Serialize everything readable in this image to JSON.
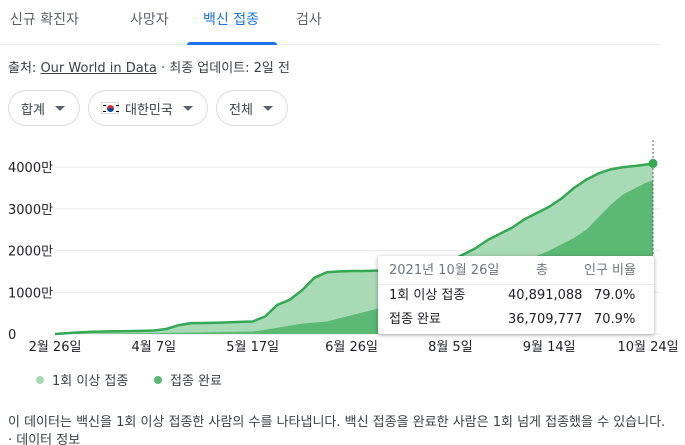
{
  "tabs": [
    {
      "label": "신규 확진자"
    },
    {
      "label": "사망자"
    },
    {
      "label": "백신 접종"
    },
    {
      "label": "검사"
    }
  ],
  "active_tab": "백신 접종",
  "source": {
    "prefix": "출처:",
    "link": "Our World in Data",
    "separator": "·",
    "updated": "최종 업데이트: 2일 전"
  },
  "filters": {
    "measure": "합계",
    "country": "대한민국",
    "scope": "전체"
  },
  "tooltip": {
    "date": "2021년 10월 26일",
    "col_total": "총",
    "col_ratio": "인구 비율",
    "rows": [
      {
        "label": "1회 이상 접종",
        "total": "40,891,088",
        "ratio": "79.0%"
      },
      {
        "label": "접종 완료",
        "total": "36,709,777",
        "ratio": "70.9%"
      }
    ]
  },
  "legend": [
    {
      "label": "1회 이상 접종",
      "color": "#a8dab5"
    },
    {
      "label": "접종 완료",
      "color": "#5bb974"
    }
  ],
  "description": {
    "text": "이 데이터는 백신을 1회 이상 접종한 사람의 수를 나타냅니다. 백신 접종을 완료한 사람은 1회 넘게 접종했을 수 있습니다.",
    "link": "· 데이터 정보"
  },
  "colors": {
    "accent": "#1a73e8",
    "line": "#34a853",
    "area_first": "#a8dab5",
    "area_full": "#5bb974"
  },
  "chart_data": {
    "type": "area",
    "unit": "만",
    "y_tick_labels": [
      "0",
      "1000만",
      "2000만",
      "3000만",
      "4000만"
    ],
    "ylim": [
      0,
      4000
    ],
    "x_tick_labels": [
      "2월 26일",
      "4월 7일",
      "5월 17일",
      "6월 26일",
      "8월 5일",
      "9월 14일",
      "10월 24일"
    ],
    "x_ticks_day": [
      0,
      40,
      80,
      120,
      160,
      200,
      240
    ],
    "x_start_label": "2월 26일",
    "x_end_day": 242,
    "grid": true,
    "legend_position": "bottom-left",
    "series": [
      {
        "name": "1회 이상 접종",
        "points": [
          [
            0,
            0
          ],
          [
            5,
            20
          ],
          [
            10,
            40
          ],
          [
            15,
            55
          ],
          [
            20,
            60
          ],
          [
            25,
            65
          ],
          [
            30,
            70
          ],
          [
            35,
            75
          ],
          [
            40,
            85
          ],
          [
            45,
            120
          ],
          [
            50,
            210
          ],
          [
            55,
            260
          ],
          [
            60,
            265
          ],
          [
            65,
            270
          ],
          [
            70,
            280
          ],
          [
            75,
            290
          ],
          [
            80,
            300
          ],
          [
            85,
            420
          ],
          [
            90,
            700
          ],
          [
            95,
            820
          ],
          [
            100,
            1050
          ],
          [
            105,
            1350
          ],
          [
            110,
            1480
          ],
          [
            115,
            1500
          ],
          [
            120,
            1510
          ],
          [
            125,
            1510
          ],
          [
            130,
            1520
          ],
          [
            135,
            1530
          ],
          [
            140,
            1540
          ],
          [
            145,
            1560
          ],
          [
            150,
            1600
          ],
          [
            155,
            1650
          ],
          [
            160,
            1750
          ],
          [
            165,
            1900
          ],
          [
            170,
            2050
          ],
          [
            175,
            2250
          ],
          [
            180,
            2400
          ],
          [
            185,
            2550
          ],
          [
            190,
            2750
          ],
          [
            195,
            2900
          ],
          [
            200,
            3050
          ],
          [
            205,
            3250
          ],
          [
            210,
            3500
          ],
          [
            215,
            3700
          ],
          [
            220,
            3850
          ],
          [
            225,
            3950
          ],
          [
            230,
            4000
          ],
          [
            235,
            4030
          ],
          [
            240,
            4070
          ],
          [
            242,
            4089
          ]
        ]
      },
      {
        "name": "접종 완료",
        "points": [
          [
            0,
            0
          ],
          [
            20,
            10
          ],
          [
            40,
            20
          ],
          [
            60,
            40
          ],
          [
            80,
            60
          ],
          [
            85,
            100
          ],
          [
            90,
            150
          ],
          [
            100,
            250
          ],
          [
            110,
            300
          ],
          [
            120,
            450
          ],
          [
            130,
            600
          ],
          [
            140,
            750
          ],
          [
            150,
            900
          ],
          [
            160,
            1100
          ],
          [
            170,
            1300
          ],
          [
            180,
            1500
          ],
          [
            190,
            1750
          ],
          [
            200,
            2000
          ],
          [
            210,
            2300
          ],
          [
            215,
            2500
          ],
          [
            220,
            2800
          ],
          [
            225,
            3100
          ],
          [
            230,
            3350
          ],
          [
            235,
            3500
          ],
          [
            240,
            3650
          ],
          [
            242,
            3671
          ]
        ]
      }
    ],
    "focus_day": 242
  }
}
